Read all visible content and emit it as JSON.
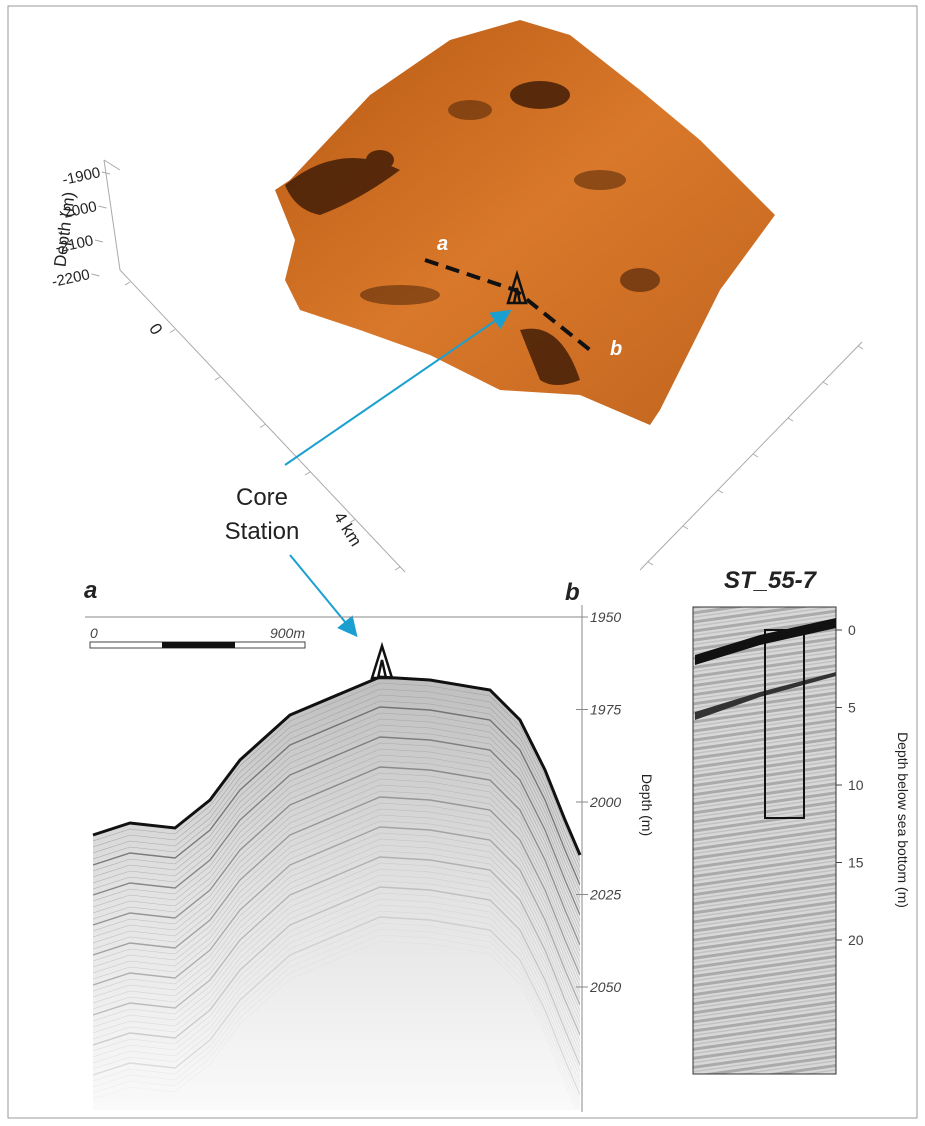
{
  "map3d": {
    "axis_label": "Depth (m)",
    "depth_ticks": [
      -1900,
      -2000,
      -2100,
      -2200
    ],
    "distance_ticks": [
      0,
      {
        "value": 4,
        "label": "4 km"
      }
    ],
    "start_label": "a",
    "end_label": "b"
  },
  "callout_lines": [
    "Core",
    "Station"
  ],
  "profile": {
    "start_label": "a",
    "end_label": "b",
    "scale_bar": {
      "start": 0,
      "end_label": "900m"
    },
    "axis_label": "Depth (m)",
    "depth_ticks": [
      1950,
      1975,
      2000,
      2025,
      2050
    ]
  },
  "core": {
    "title": "ST_55-7",
    "axis_label": "Depth below sea bottom (m)",
    "ticks": [
      0,
      5,
      10,
      15,
      20
    ]
  }
}
